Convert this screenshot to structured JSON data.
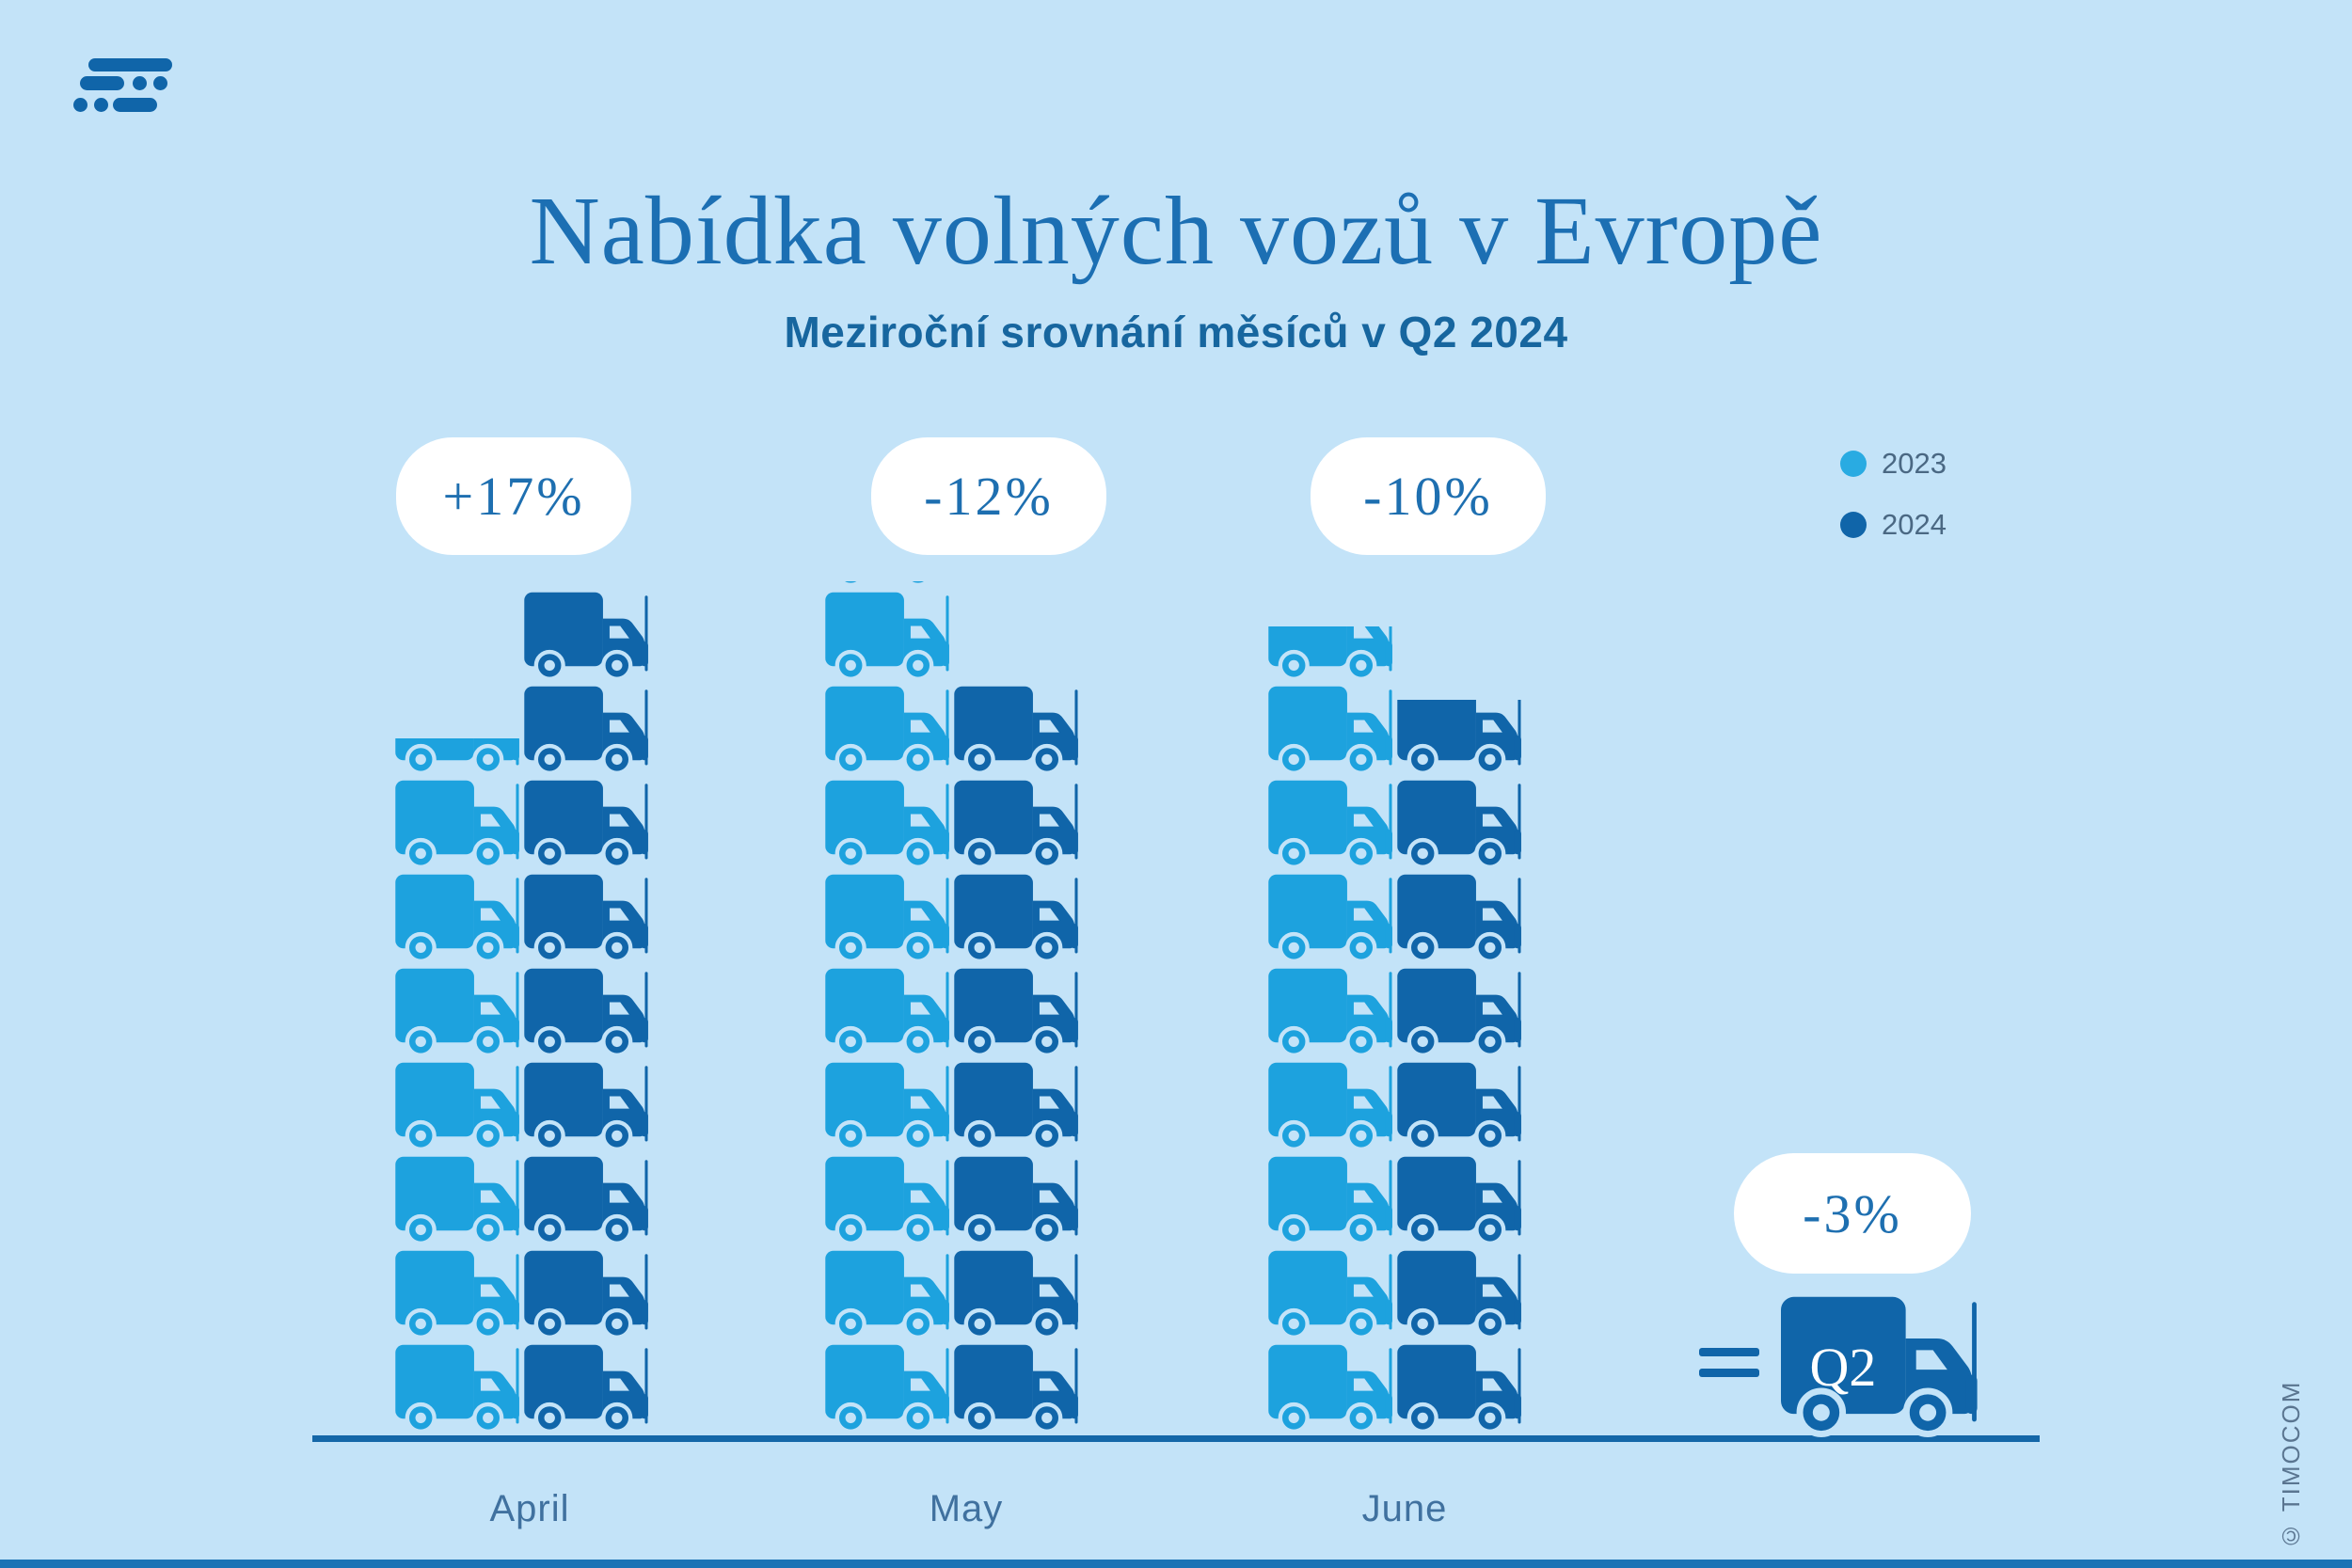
{
  "title": "Nabídka volných vozů v Evropě",
  "subtitle": "Meziroční srovnání měsíců v Q2 2024",
  "legend": [
    {
      "label": "2023",
      "color": "#29ABE2"
    },
    {
      "label": "2024",
      "color": "#1065A9"
    }
  ],
  "chart_data": {
    "type": "bar",
    "subtype": "pictogram-truck-stacks",
    "categories": [
      "April",
      "May",
      "June"
    ],
    "series": [
      {
        "name": "2023",
        "color": "#29ABE2",
        "values": [
          7.7,
          9.1,
          8.7
        ],
        "trucks_full": [
          7,
          9,
          8
        ],
        "trucks_partial_fraction": [
          0.45,
          0.1,
          0.65
        ]
      },
      {
        "name": "2024",
        "color": "#1065A9",
        "values": [
          9.0,
          8.0,
          7.8
        ],
        "trucks_full": [
          9,
          8,
          7
        ],
        "trucks_partial_fraction": [
          0,
          0.08,
          0.88
        ]
      }
    ],
    "change_labels": [
      "+17%",
      "-12%",
      "-10%"
    ],
    "summary": {
      "equals_label": "=",
      "truck_label": "Q2",
      "change_label": "-3%"
    },
    "legend_position": "top-right",
    "grid": false
  },
  "footer": {
    "copyright": "© TIMOCOM"
  },
  "colors": {
    "background": "#C3E3F8",
    "series_2023": "#29ABE2",
    "series_2024": "#1065A9",
    "title_text": "#1C6FB3",
    "bubble_background": "#FFFFFF",
    "baseline": "#1467A8"
  }
}
